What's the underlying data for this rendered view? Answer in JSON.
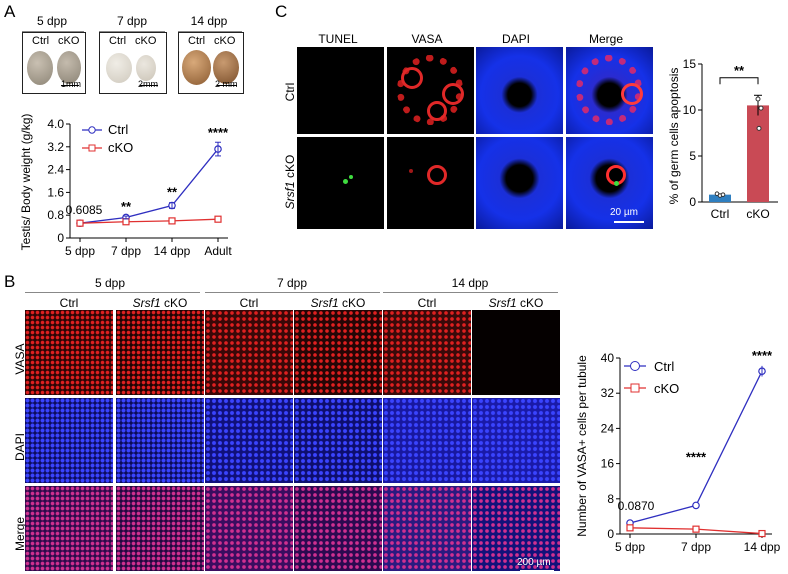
{
  "panels": {
    "A": "A",
    "B": "B",
    "C": "C"
  },
  "panelA": {
    "photos": [
      {
        "title": "5 dpp",
        "ctrl": "Ctrl",
        "cko": "cKO",
        "scale": "1mm"
      },
      {
        "title": "7 dpp",
        "ctrl": "Ctrl",
        "cko": "cKO",
        "scale": "2mm"
      },
      {
        "title": "14 dpp",
        "ctrl": "Ctrl",
        "cko": "cKO",
        "scale": "2 mm"
      }
    ]
  },
  "panelC": {
    "columns": [
      "TUNEL",
      "VASA",
      "DAPI",
      "Merge"
    ],
    "rows": [
      "Ctrl",
      "Srsf1",
      " cKO"
    ],
    "scale": "20 µm"
  },
  "panelB": {
    "groups": [
      "5 dpp",
      "7 dpp",
      "14 dpp"
    ],
    "subcols": [
      "Ctrl",
      "Srsf1",
      " cKO"
    ],
    "rows": [
      "VASA",
      "DAPI",
      "Merge"
    ],
    "scale": "200 µm"
  },
  "chart_data": [
    {
      "type": "line",
      "ylabel": "Testis/ Body weight (g/kg)",
      "categories": [
        "5 dpp",
        "7 dpp",
        "14 dpp",
        "Adult"
      ],
      "ylim": [
        0,
        4.0
      ],
      "yticks": [
        "0",
        "0.8",
        "1.6",
        "2.4",
        "3.2",
        "4.0"
      ],
      "series": [
        {
          "name": "Ctrl",
          "color": "#2f2fc0",
          "values": [
            0.52,
            0.72,
            1.14,
            3.12
          ]
        },
        {
          "name": "cKO",
          "color": "#e03030",
          "values": [
            0.52,
            0.57,
            0.6,
            0.66
          ]
        }
      ],
      "annotations": [
        "0.6085",
        "**",
        "**",
        "****"
      ]
    },
    {
      "type": "bar",
      "ylabel": "% of germ cells apoptosis",
      "categories": [
        "Ctrl",
        "cKO"
      ],
      "values": [
        0.8,
        10.5
      ],
      "ylim": [
        0,
        15
      ],
      "yticks": [
        "0",
        "5",
        "10",
        "15"
      ],
      "colors": [
        "#2f7fc0",
        "#c94a55"
      ],
      "annotation": "**"
    },
    {
      "type": "line",
      "ylabel": "Number of VASA+ cells per tubule",
      "categories": [
        "5 dpp",
        "7 dpp",
        "14 dpp"
      ],
      "ylim": [
        0,
        40
      ],
      "yticks": [
        "0",
        "8",
        "16",
        "24",
        "32",
        "40"
      ],
      "series": [
        {
          "name": "Ctrl",
          "color": "#2f2fc0",
          "values": [
            2.5,
            6.5,
            37
          ]
        },
        {
          "name": "cKO",
          "color": "#e03030",
          "values": [
            1.4,
            1.1,
            0.1
          ]
        }
      ],
      "annotations": [
        "0.0870",
        "****",
        "****"
      ]
    }
  ]
}
